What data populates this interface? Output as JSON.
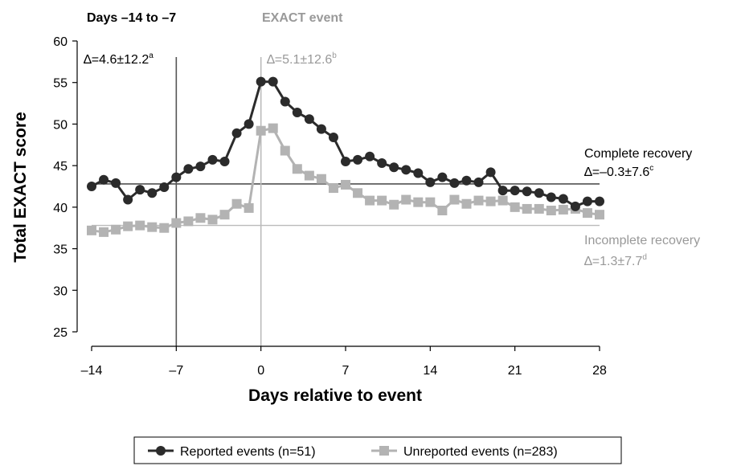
{
  "chart_data": {
    "type": "line",
    "xlabel": "Days relative to event",
    "ylabel": "Total EXACT score",
    "xlim": [
      -14,
      28
    ],
    "ylim": [
      25,
      60
    ],
    "xticks": [
      "–14",
      "–7",
      "0",
      "7",
      "14",
      "21",
      "28"
    ],
    "xtick_values": [
      -14,
      -7,
      0,
      7,
      14,
      21,
      28
    ],
    "yticks": [
      25,
      30,
      35,
      40,
      45,
      50,
      55,
      60
    ],
    "x": [
      -14,
      -13,
      -12,
      -11,
      -10,
      -9,
      -8,
      -7,
      -6,
      -5,
      -4,
      -3,
      -2,
      -1,
      0,
      1,
      2,
      3,
      4,
      5,
      6,
      7,
      8,
      9,
      10,
      11,
      12,
      13,
      14,
      15,
      16,
      17,
      18,
      19,
      20,
      21,
      22,
      23,
      24,
      25,
      26,
      27,
      28
    ],
    "series": [
      {
        "name": "Reported events (n=51)",
        "color": "#2b2b2b",
        "marker": "circle",
        "values": [
          42.5,
          43.3,
          42.9,
          40.9,
          42.1,
          41.7,
          42.4,
          43.6,
          44.6,
          44.9,
          45.7,
          45.5,
          48.9,
          50.0,
          55.1,
          55.1,
          52.7,
          51.4,
          50.6,
          49.4,
          48.4,
          45.5,
          45.7,
          46.1,
          45.3,
          44.8,
          44.5,
          44.1,
          43.0,
          43.6,
          42.9,
          43.2,
          43.0,
          44.2,
          42.0,
          42.0,
          41.9,
          41.7,
          41.2,
          41.0,
          40.1,
          40.7,
          40.7
        ]
      },
      {
        "name": "Unreported events (n=283)",
        "color": "#b3b3b3",
        "marker": "square",
        "values": [
          37.2,
          37.0,
          37.3,
          37.7,
          37.8,
          37.6,
          37.5,
          38.1,
          38.3,
          38.7,
          38.5,
          39.1,
          40.4,
          39.9,
          49.2,
          49.5,
          46.8,
          44.6,
          43.8,
          43.4,
          42.3,
          42.7,
          41.7,
          40.8,
          40.8,
          40.3,
          40.9,
          40.6,
          40.6,
          39.6,
          40.9,
          40.4,
          40.8,
          40.7,
          40.8,
          40.0,
          39.8,
          39.8,
          39.6,
          39.7,
          39.8,
          39.3,
          39.1
        ]
      }
    ],
    "reference_lines": [
      {
        "name": "complete-recovery-level",
        "y": 42.8,
        "color": "#333333"
      },
      {
        "name": "incomplete-recovery-level",
        "y": 37.8,
        "color": "#bbbbbb"
      }
    ],
    "vertical_lines": [
      {
        "name": "day-minus-7-line",
        "x": -7,
        "color": "#555555"
      },
      {
        "name": "event-day-line",
        "x": 0,
        "color": "#bbbbbb"
      }
    ],
    "header_labels": {
      "days_window": "Days –14 to –7",
      "exact_event": "EXACT event"
    },
    "annotations": {
      "pre_event": {
        "prefix": "∆=4.6±12.2",
        "sup": "a"
      },
      "event": {
        "prefix": "∆=5.1±12.6",
        "sup": "b"
      },
      "complete_title": "Complete recovery",
      "complete_delta": {
        "prefix": "∆=–0.3±7.6",
        "sup": "c"
      },
      "incomplete_title": "Incomplete recovery",
      "incomplete_delta": {
        "prefix": "∆=1.3±7.7",
        "sup": "d"
      }
    },
    "legend": {
      "position": "bottom",
      "items": [
        "Reported events (n=51)",
        "Unreported events (n=283)"
      ]
    }
  }
}
